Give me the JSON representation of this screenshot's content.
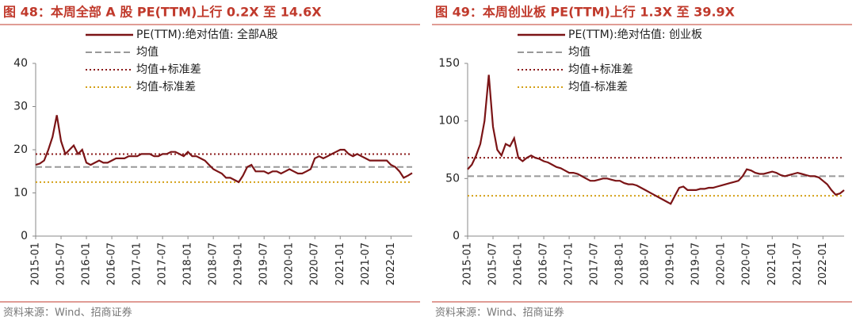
{
  "chart_data": [
    {
      "type": "line",
      "title": "图 48：本周全部 A 股 PE(TTM)上行 0.2X 至 14.6X",
      "source": "资料来源：Wind、招商证券",
      "x": [
        "2015-01",
        "2015-02",
        "2015-03",
        "2015-04",
        "2015-05",
        "2015-06",
        "2015-07",
        "2015-08",
        "2015-09",
        "2015-10",
        "2015-11",
        "2015-12",
        "2016-01",
        "2016-02",
        "2016-03",
        "2016-04",
        "2016-05",
        "2016-06",
        "2016-07",
        "2016-08",
        "2016-09",
        "2016-10",
        "2016-11",
        "2016-12",
        "2017-01",
        "2017-02",
        "2017-03",
        "2017-04",
        "2017-05",
        "2017-06",
        "2017-07",
        "2017-08",
        "2017-09",
        "2017-10",
        "2017-11",
        "2017-12",
        "2018-01",
        "2018-02",
        "2018-03",
        "2018-04",
        "2018-05",
        "2018-06",
        "2018-07",
        "2018-08",
        "2018-09",
        "2018-10",
        "2018-11",
        "2018-12",
        "2019-01",
        "2019-02",
        "2019-03",
        "2019-04",
        "2019-05",
        "2019-06",
        "2019-07",
        "2019-08",
        "2019-09",
        "2019-10",
        "2019-11",
        "2019-12",
        "2020-01",
        "2020-02",
        "2020-03",
        "2020-04",
        "2020-05",
        "2020-06",
        "2020-07",
        "2020-08",
        "2020-09",
        "2020-10",
        "2020-11",
        "2020-12",
        "2021-01",
        "2021-02",
        "2021-03",
        "2021-04",
        "2021-05",
        "2021-06",
        "2021-07",
        "2021-08",
        "2021-09",
        "2021-10",
        "2021-11",
        "2021-12",
        "2022-01",
        "2022-02",
        "2022-03",
        "2022-04",
        "2022-05",
        "2022-06"
      ],
      "xticks": [
        "2015-01",
        "2015-07",
        "2016-01",
        "2016-07",
        "2017-01",
        "2017-07",
        "2018-01",
        "2018-07",
        "2019-01",
        "2019-07",
        "2020-01",
        "2020-07",
        "2021-01",
        "2021-07",
        "2022-01"
      ],
      "ylim": [
        0,
        40
      ],
      "yticks": [
        0,
        10,
        20,
        30,
        40
      ],
      "series": [
        {
          "name": "PE(TTM):绝对估值: 全部A股",
          "color": "#7b1416",
          "values": [
            16.5,
            16.8,
            17.5,
            20,
            23,
            28,
            22,
            19,
            20,
            21,
            19,
            20,
            17,
            16.5,
            17,
            17.5,
            17,
            17,
            17.5,
            18,
            18,
            18,
            18.5,
            18.5,
            18.5,
            19,
            19,
            19,
            18.5,
            18.5,
            19,
            19,
            19.5,
            19.5,
            19,
            18.5,
            19.5,
            18.5,
            18.5,
            18,
            17.5,
            16.5,
            15.5,
            15,
            14.5,
            13.5,
            13.5,
            13,
            12.5,
            14,
            16,
            16.5,
            15,
            15,
            15,
            14.5,
            15,
            15,
            14.5,
            15,
            15.5,
            15,
            14.5,
            14.5,
            15,
            15.5,
            18,
            18.5,
            18,
            18.5,
            19,
            19.5,
            20,
            20,
            19,
            18.5,
            19,
            18.5,
            18,
            17.5,
            17.5,
            17.5,
            17.5,
            17.5,
            16.5,
            16,
            15,
            13.5,
            14,
            14.6
          ]
        }
      ],
      "reference_lines": [
        {
          "name": "均值",
          "color": "#999999",
          "style": "dashed",
          "value": 16
        },
        {
          "name": "均值+标准差",
          "color": "#8b1a1a",
          "style": "dotted",
          "value": 19
        },
        {
          "name": "均值-标准差",
          "color": "#d4a017",
          "style": "dotted",
          "value": 12.5
        }
      ]
    },
    {
      "type": "line",
      "title": "图 49：本周创业板 PE(TTM)上行 1.3X 至 39.9X",
      "source": "资料来源：Wind、招商证券",
      "x": [
        "2015-01",
        "2015-02",
        "2015-03",
        "2015-04",
        "2015-05",
        "2015-06",
        "2015-07",
        "2015-08",
        "2015-09",
        "2015-10",
        "2015-11",
        "2015-12",
        "2016-01",
        "2016-02",
        "2016-03",
        "2016-04",
        "2016-05",
        "2016-06",
        "2016-07",
        "2016-08",
        "2016-09",
        "2016-10",
        "2016-11",
        "2016-12",
        "2017-01",
        "2017-02",
        "2017-03",
        "2017-04",
        "2017-05",
        "2017-06",
        "2017-07",
        "2017-08",
        "2017-09",
        "2017-10",
        "2017-11",
        "2017-12",
        "2018-01",
        "2018-02",
        "2018-03",
        "2018-04",
        "2018-05",
        "2018-06",
        "2018-07",
        "2018-08",
        "2018-09",
        "2018-10",
        "2018-11",
        "2018-12",
        "2019-01",
        "2019-02",
        "2019-03",
        "2019-04",
        "2019-05",
        "2019-06",
        "2019-07",
        "2019-08",
        "2019-09",
        "2019-10",
        "2019-11",
        "2019-12",
        "2020-01",
        "2020-02",
        "2020-03",
        "2020-04",
        "2020-05",
        "2020-06",
        "2020-07",
        "2020-08",
        "2020-09",
        "2020-10",
        "2020-11",
        "2020-12",
        "2021-01",
        "2021-02",
        "2021-03",
        "2021-04",
        "2021-05",
        "2021-06",
        "2021-07",
        "2021-08",
        "2021-09",
        "2021-10",
        "2021-11",
        "2021-12",
        "2022-01",
        "2022-02",
        "2022-03",
        "2022-04",
        "2022-05",
        "2022-06"
      ],
      "xticks": [
        "2015-01",
        "2015-07",
        "2016-01",
        "2016-07",
        "2017-01",
        "2017-07",
        "2018-01",
        "2018-07",
        "2019-01",
        "2019-07",
        "2020-01",
        "2020-07",
        "2021-01",
        "2021-07",
        "2022-01"
      ],
      "ylim": [
        0,
        150
      ],
      "yticks": [
        0,
        50,
        100,
        150
      ],
      "series": [
        {
          "name": "PE(TTM):绝对估值: 创业板",
          "color": "#7b1416",
          "values": [
            58,
            62,
            70,
            80,
            100,
            140,
            95,
            75,
            70,
            80,
            78,
            85,
            68,
            65,
            68,
            70,
            68,
            67,
            65,
            64,
            62,
            60,
            59,
            57,
            55,
            55,
            54,
            52,
            50,
            48,
            48,
            49,
            50,
            50,
            49,
            48,
            48,
            46,
            45,
            45,
            44,
            42,
            40,
            38,
            36,
            34,
            32,
            30,
            28,
            35,
            42,
            43,
            40,
            40,
            40,
            41,
            41,
            42,
            42,
            43,
            44,
            45,
            46,
            47,
            48,
            52,
            58,
            57,
            55,
            54,
            54,
            55,
            56,
            55,
            53,
            52,
            53,
            54,
            55,
            54,
            53,
            52,
            52,
            51,
            48,
            45,
            40,
            36,
            37,
            39.9
          ]
        }
      ],
      "reference_lines": [
        {
          "name": "均值",
          "color": "#999999",
          "style": "dashed",
          "value": 52
        },
        {
          "name": "均值+标准差",
          "color": "#8b1a1a",
          "style": "dotted",
          "value": 68
        },
        {
          "name": "均值-标准差",
          "color": "#d4a017",
          "style": "dotted",
          "value": 35
        }
      ]
    }
  ]
}
